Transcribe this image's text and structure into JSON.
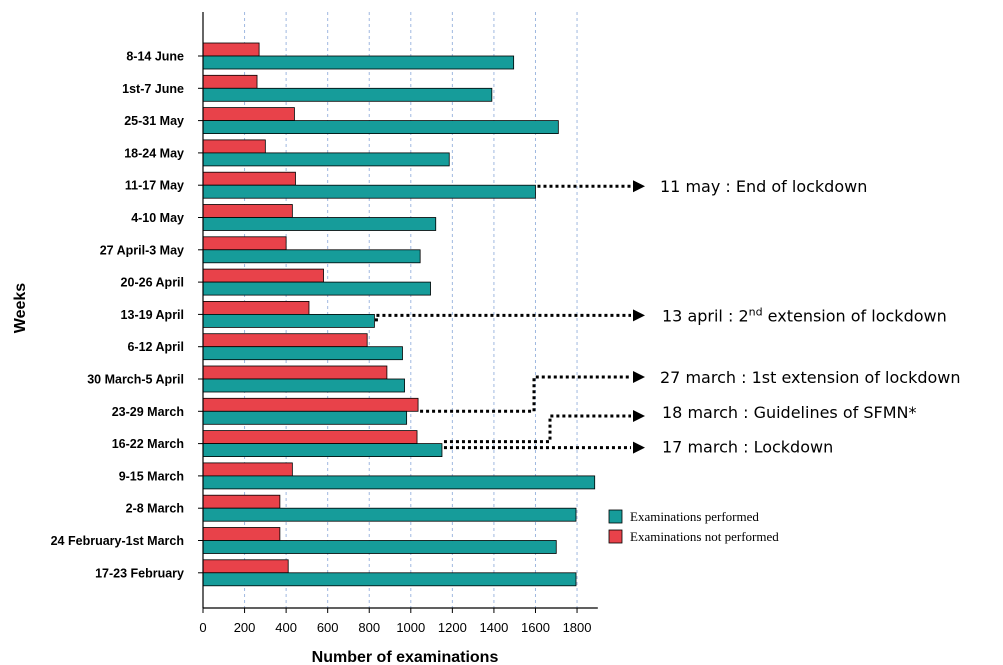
{
  "chart_data": {
    "type": "bar",
    "orientation": "horizontal",
    "xlabel": "Number of examinations",
    "ylabel": "Weeks",
    "xlim": [
      0,
      1900
    ],
    "xticks": [
      0,
      200,
      400,
      600,
      800,
      1000,
      1200,
      1400,
      1600,
      1800
    ],
    "grid": "vertical dashed",
    "legend_position": "right",
    "categories": [
      "8-14 June",
      "1st-7 June",
      "25-31 May",
      "18-24 May",
      "11-17 May",
      "4-10 May",
      "27 April-3 May",
      "20-26 April",
      "13-19 April",
      "6-12 April",
      "30 March-5 April",
      "23-29 March",
      "16-22 March",
      "9-15 March",
      "2-8 March",
      "24 February-1st March",
      "17-23 February"
    ],
    "series": [
      {
        "name": "Examinations not performed",
        "color": "#e8424a",
        "values": [
          270,
          260,
          440,
          300,
          445,
          430,
          400,
          580,
          510,
          790,
          885,
          1035,
          1030,
          430,
          370,
          370,
          410
        ]
      },
      {
        "name": "Examinations performed",
        "color": "#169c9a",
        "values": [
          1495,
          1390,
          1710,
          1185,
          1600,
          1120,
          1045,
          1095,
          825,
          960,
          970,
          980,
          1150,
          1885,
          1795,
          1700,
          1795
        ]
      }
    ],
    "annotations": [
      {
        "text_main": "11 may : End of lockdown",
        "sup": "",
        "text_after": "",
        "week": "11-17 May"
      },
      {
        "text_main": "13 april : 2",
        "sup": "nd",
        "text_after": " extension of lockdown",
        "week": "13-19 April"
      },
      {
        "text_main": "27 march : 1st extension of lockdown",
        "sup": "",
        "text_after": "",
        "week": "23-29 March"
      },
      {
        "text_main": "18 march : Guidelines of SFMN*",
        "sup": "",
        "text_after": "",
        "week": "16-22 March"
      },
      {
        "text_main": "17 march : Lockdown",
        "sup": "",
        "text_after": "",
        "week": "16-22 March"
      }
    ]
  }
}
